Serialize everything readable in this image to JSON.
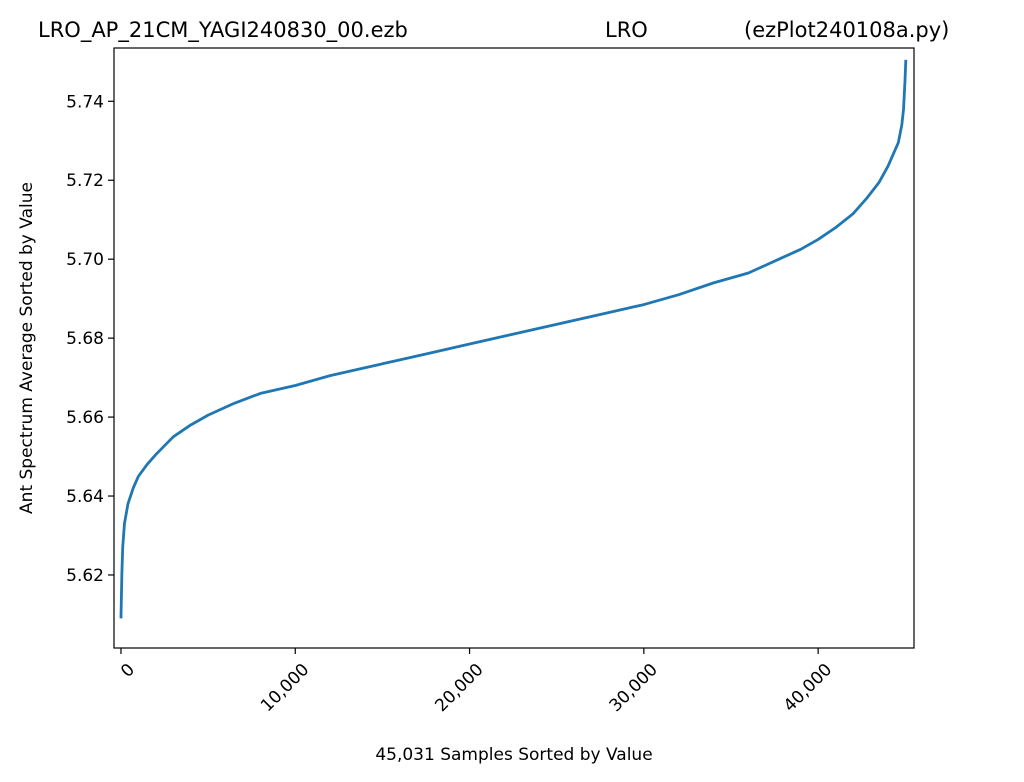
{
  "header": {
    "file_name": "LRO_AP_21CM_YAGI240830_00.ezb",
    "station": "LRO",
    "script_name": "(ezPlot240108a.py)"
  },
  "chart_data": {
    "type": "line",
    "title": "",
    "xlabel": "45,031 Samples Sorted by Value",
    "ylabel": "Ant Spectrum Average Sorted by Value",
    "xlim": [
      -400,
      45500
    ],
    "ylim": [
      5.6015,
      5.7535
    ],
    "xticks": [
      {
        "value": 0,
        "label": "0"
      },
      {
        "value": 10000,
        "label": "10,000"
      },
      {
        "value": 20000,
        "label": "20,000"
      },
      {
        "value": 30000,
        "label": "30,000"
      },
      {
        "value": 40000,
        "label": "40,000"
      }
    ],
    "yticks": [
      {
        "value": 5.62,
        "label": "5.62"
      },
      {
        "value": 5.64,
        "label": "5.64"
      },
      {
        "value": 5.66,
        "label": "5.66"
      },
      {
        "value": 5.68,
        "label": "5.68"
      },
      {
        "value": 5.7,
        "label": "5.70"
      },
      {
        "value": 5.72,
        "label": "5.72"
      },
      {
        "value": 5.74,
        "label": "5.74"
      }
    ],
    "grid": false,
    "series": [
      {
        "color": "#1f77b4",
        "x": [
          0,
          50,
          100,
          200,
          400,
          700,
          1000,
          1500,
          2000,
          3000,
          4000,
          5000,
          6500,
          8000,
          10000,
          12000,
          14000,
          16000,
          18000,
          20000,
          22000,
          24000,
          26000,
          28000,
          30000,
          32000,
          34000,
          36000,
          37000,
          38000,
          39000,
          40000,
          41000,
          42000,
          42800,
          43500,
          44000,
          44300,
          44600,
          44800,
          44900,
          44980,
          45031
        ],
        "y": [
          5.609,
          5.62,
          5.627,
          5.633,
          5.638,
          5.642,
          5.645,
          5.648,
          5.6505,
          5.655,
          5.658,
          5.6605,
          5.6635,
          5.666,
          5.668,
          5.6705,
          5.6725,
          5.6745,
          5.6765,
          5.6785,
          5.6805,
          5.6825,
          5.6845,
          5.6865,
          5.6885,
          5.691,
          5.694,
          5.6965,
          5.6985,
          5.7005,
          5.7025,
          5.705,
          5.708,
          5.7115,
          5.7155,
          5.7195,
          5.7235,
          5.7265,
          5.7295,
          5.734,
          5.738,
          5.745,
          5.7505
        ]
      }
    ]
  }
}
